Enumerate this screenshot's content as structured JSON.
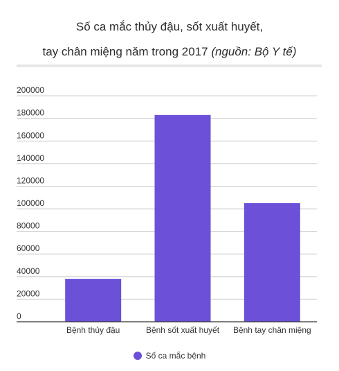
{
  "title": {
    "line1": "Số ca mắc thủy đậu, sốt xuất huyết,",
    "line2_main": "tay chân miệng năm trong 2017",
    "line2_source": "(nguồn: Bộ Y tế)"
  },
  "chart_data": {
    "type": "bar",
    "categories": [
      "Bệnh thủy đậu",
      "Bệnh sốt xuất huyết",
      "Bệnh tay chân miệng"
    ],
    "series": [
      {
        "name": "Số ca mắc bệnh",
        "values": [
          38000,
          183000,
          105000
        ]
      }
    ],
    "y_ticks": [
      "0",
      "20000",
      "40000",
      "60000",
      "80000",
      "100000",
      "120000",
      "140000",
      "160000",
      "180000",
      "200000"
    ],
    "ylim": [
      0,
      205000
    ],
    "grid": true,
    "legend_position": "bottom",
    "bar_color": "#6c50d8",
    "grid_color": "#c8c8c8",
    "axis_color": "#333333"
  },
  "legend": {
    "label": "Số ca mắc bệnh"
  }
}
